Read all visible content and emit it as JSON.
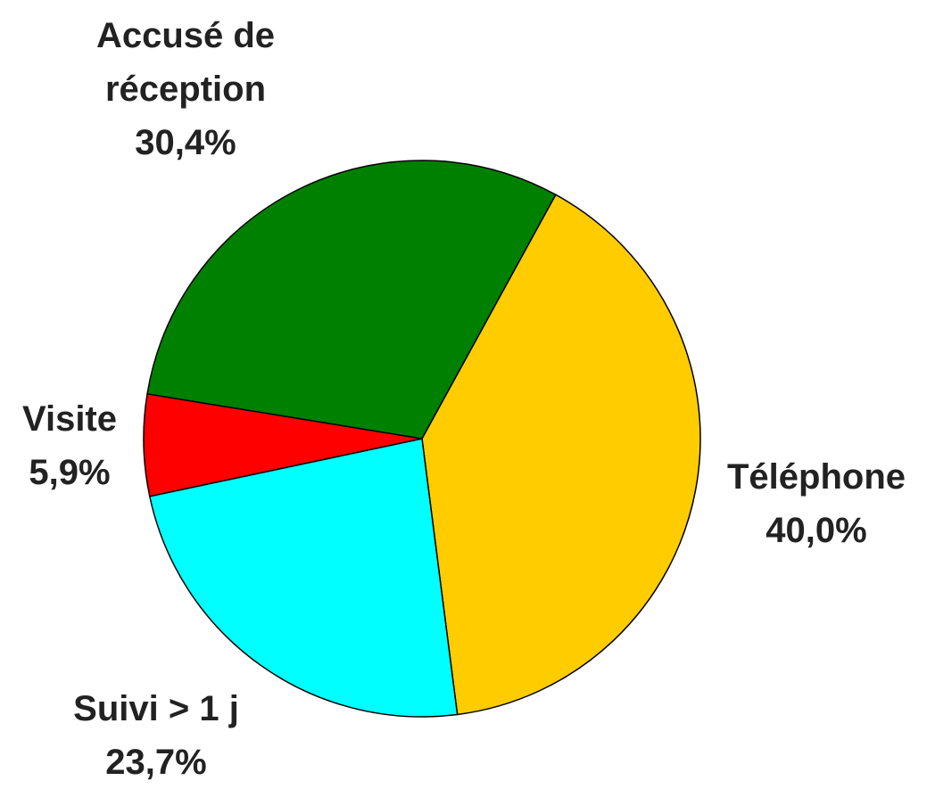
{
  "chart_data": {
    "type": "pie",
    "categories": [
      "Téléphone",
      "Suivi > 1 j",
      "Visite",
      "Accusé de réception"
    ],
    "values": [
      40.0,
      23.7,
      5.9,
      30.4
    ],
    "value_labels": [
      "40,0%",
      "23,7%",
      "5,9%",
      "30,4%"
    ],
    "colors": [
      "#ffcc00",
      "#00ffff",
      "#ff0000",
      "#008000"
    ]
  }
}
